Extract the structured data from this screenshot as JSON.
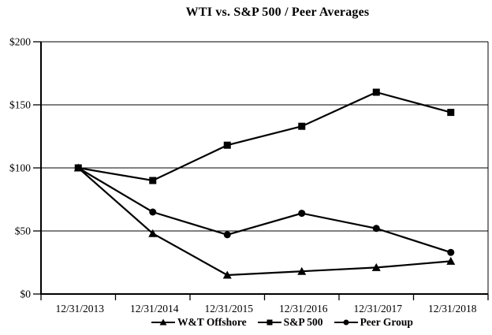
{
  "chart_data": {
    "type": "line",
    "title": "WTI vs. S&P 500 / Peer Averages",
    "x_categories": [
      "12/31/2013",
      "12/31/2014",
      "12/31/2015",
      "12/31/2016",
      "12/31/2017",
      "12/31/2018"
    ],
    "series": [
      {
        "name": "W&T Offshore",
        "marker": "triangle",
        "values": [
          100,
          48,
          15,
          18,
          21,
          26
        ]
      },
      {
        "name": "S&P 500",
        "marker": "square",
        "values": [
          100,
          90,
          118,
          133,
          160,
          144
        ]
      },
      {
        "name": "Peer Group",
        "marker": "circle",
        "values": [
          100,
          65,
          47,
          64,
          52,
          33
        ]
      }
    ],
    "y_ticks": [
      {
        "value": 0,
        "label": "$0"
      },
      {
        "value": 50,
        "label": "$50"
      },
      {
        "value": 100,
        "label": "$100"
      },
      {
        "value": 150,
        "label": "$150"
      },
      {
        "value": 200,
        "label": "$200"
      }
    ],
    "ylim": [
      0,
      200
    ],
    "grid": "horizontal",
    "legend_position": "bottom",
    "line_color": "#000000",
    "background": "#ffffff"
  }
}
